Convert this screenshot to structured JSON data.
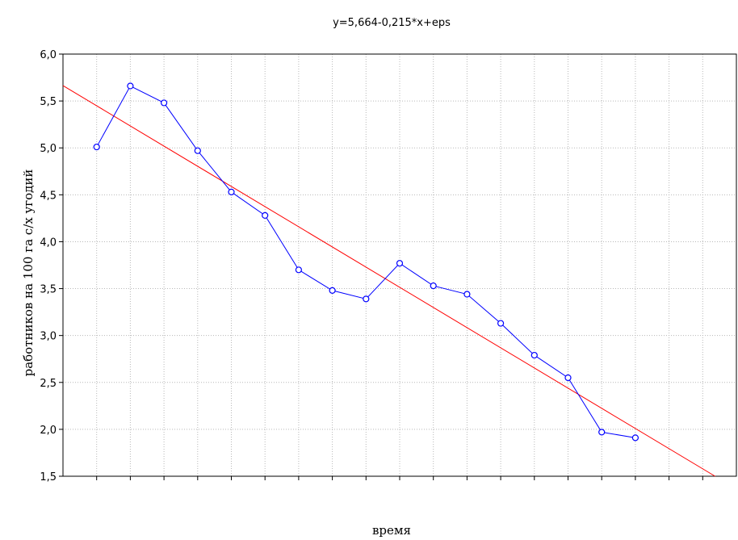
{
  "chart_data": {
    "type": "line",
    "title": "y=5,664-0,215*x+eps",
    "xlabel": "время",
    "ylabel": "работников на 100 га с/х угодий",
    "xlim": [
      0,
      20
    ],
    "ylim": [
      1.5,
      6.0
    ],
    "yticks": [
      "1,5",
      "2,0",
      "2,5",
      "3,0",
      "3,5",
      "4,0",
      "4,5",
      "5,0",
      "5,5",
      "6,0"
    ],
    "grid": true,
    "series": [
      {
        "color": "#0000ff",
        "marker": "circle",
        "x": [
          1,
          2,
          3,
          4,
          5,
          6,
          7,
          8,
          9,
          10,
          11,
          12,
          13,
          14,
          15,
          16,
          17
        ],
        "y": [
          5.01,
          5.66,
          5.48,
          4.97,
          4.53,
          4.28,
          3.7,
          3.48,
          3.39,
          3.77,
          3.53,
          3.44,
          3.13,
          2.79,
          2.55,
          1.97,
          1.91
        ]
      }
    ],
    "fit": {
      "color": "#ff0000",
      "intercept": 5.664,
      "slope": -0.215
    }
  }
}
